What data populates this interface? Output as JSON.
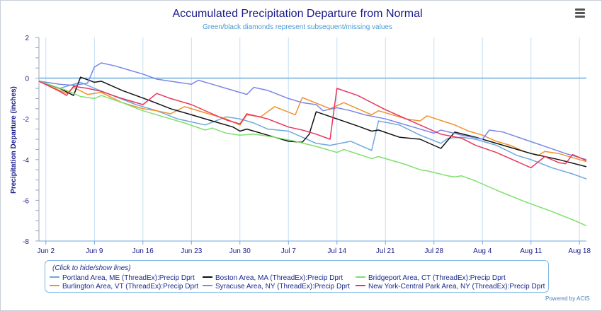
{
  "chart_data": {
    "type": "line",
    "title": "Accumulated Precipitation Departure from Normal",
    "subtitle": "Green/black diamonds represent subsequent/missing values",
    "ylabel": "Precipitation Departure (inches)",
    "xlabel": "",
    "ylim": [
      -8,
      2
    ],
    "xlim": [
      0,
      79
    ],
    "yticks": [
      2,
      0,
      -2,
      -4,
      -6,
      -8
    ],
    "xticks": [
      {
        "day": 1,
        "label": "Jun 2"
      },
      {
        "day": 8,
        "label": "Jun 9"
      },
      {
        "day": 15,
        "label": "Jun 16"
      },
      {
        "day": 22,
        "label": "Jun 23"
      },
      {
        "day": 29,
        "label": "Jun 30"
      },
      {
        "day": 36,
        "label": "Jul 7"
      },
      {
        "day": 43,
        "label": "Jul 14"
      },
      {
        "day": 50,
        "label": "Jul 21"
      },
      {
        "day": 57,
        "label": "Jul 28"
      },
      {
        "day": 64,
        "label": "Aug 4"
      },
      {
        "day": 71,
        "label": "Aug 11"
      },
      {
        "day": 78,
        "label": "Aug 18"
      }
    ],
    "series": [
      {
        "name": "Portland Area, ME (ThreadEx):Precip Dprt",
        "color": "#6fa8dc",
        "points": [
          [
            0,
            -0.15
          ],
          [
            3,
            -0.5
          ],
          [
            5,
            -0.3
          ],
          [
            6,
            -0.2
          ],
          [
            8,
            -0.5
          ],
          [
            11,
            -0.9
          ],
          [
            14,
            -1.3
          ],
          [
            17,
            -1.6
          ],
          [
            20,
            -2.0
          ],
          [
            24,
            -2.3
          ],
          [
            27,
            -1.9
          ],
          [
            29,
            -2.0
          ],
          [
            31,
            -2.2
          ],
          [
            33,
            -2.5
          ],
          [
            36,
            -2.6
          ],
          [
            38,
            -2.9
          ],
          [
            40,
            -3.2
          ],
          [
            42,
            -3.3
          ],
          [
            45,
            -3.1
          ],
          [
            48,
            -3.55
          ],
          [
            49,
            -2.1
          ],
          [
            52,
            -2.3
          ],
          [
            55,
            -2.8
          ],
          [
            58,
            -3.2
          ],
          [
            59,
            -2.95
          ],
          [
            61,
            -2.9
          ],
          [
            63,
            -3.0
          ],
          [
            66,
            -3.3
          ],
          [
            69,
            -3.8
          ],
          [
            71,
            -4.0
          ],
          [
            74,
            -4.4
          ],
          [
            77,
            -4.7
          ],
          [
            79,
            -4.95
          ]
        ]
      },
      {
        "name": "Burlington Area, VT (ThreadEx):Precip Dprt",
        "color": "#f0922b",
        "points": [
          [
            0,
            -0.15
          ],
          [
            3,
            -0.6
          ],
          [
            4,
            -0.75
          ],
          [
            5,
            -0.45
          ],
          [
            7,
            -0.8
          ],
          [
            9,
            -0.7
          ],
          [
            12,
            -1.2
          ],
          [
            15,
            -1.5
          ],
          [
            17,
            -1.6
          ],
          [
            19,
            -1.75
          ],
          [
            21,
            -1.4
          ],
          [
            24,
            -1.7
          ],
          [
            27,
            -2.0
          ],
          [
            29,
            -2.3
          ],
          [
            30,
            -1.8
          ],
          [
            32,
            -1.9
          ],
          [
            34,
            -1.4
          ],
          [
            37,
            -1.8
          ],
          [
            38,
            -0.95
          ],
          [
            42,
            -1.5
          ],
          [
            44,
            -1.2
          ],
          [
            48,
            -1.8
          ],
          [
            49,
            -1.6
          ],
          [
            53,
            -2.0
          ],
          [
            55,
            -2.1
          ],
          [
            56,
            -1.85
          ],
          [
            60,
            -2.3
          ],
          [
            62,
            -2.6
          ],
          [
            64,
            -2.8
          ],
          [
            66,
            -3.1
          ],
          [
            68,
            -3.3
          ],
          [
            70,
            -3.6
          ],
          [
            72,
            -3.8
          ],
          [
            73,
            -3.6
          ],
          [
            75,
            -3.7
          ],
          [
            79,
            -4.1
          ]
        ]
      },
      {
        "name": "Boston Area, MA (ThreadEx):Precip Dprt",
        "color": "#111111",
        "points": [
          [
            0,
            -0.15
          ],
          [
            3,
            -0.5
          ],
          [
            5,
            -0.85
          ],
          [
            6,
            0.05
          ],
          [
            8,
            -0.2
          ],
          [
            9,
            -0.15
          ],
          [
            12,
            -0.6
          ],
          [
            16,
            -1.1
          ],
          [
            19,
            -1.5
          ],
          [
            22,
            -1.8
          ],
          [
            25,
            -2.1
          ],
          [
            28,
            -2.4
          ],
          [
            29,
            -2.6
          ],
          [
            30,
            -2.5
          ],
          [
            33,
            -2.8
          ],
          [
            36,
            -3.1
          ],
          [
            38,
            -3.15
          ],
          [
            39,
            -2.75
          ],
          [
            40,
            -1.65
          ],
          [
            43,
            -2.0
          ],
          [
            46,
            -2.35
          ],
          [
            48,
            -2.6
          ],
          [
            49,
            -2.55
          ],
          [
            52,
            -2.9
          ],
          [
            55,
            -3.0
          ],
          [
            58,
            -3.45
          ],
          [
            60,
            -2.65
          ],
          [
            63,
            -2.9
          ],
          [
            67,
            -3.3
          ],
          [
            71,
            -3.7
          ],
          [
            75,
            -4.0
          ],
          [
            79,
            -4.35
          ]
        ]
      },
      {
        "name": "Syracuse Area, NY (ThreadEx):Precip Dprt",
        "color": "#7b86e6",
        "points": [
          [
            0,
            -0.15
          ],
          [
            3,
            -0.3
          ],
          [
            5,
            -0.35
          ],
          [
            7,
            -0.25
          ],
          [
            8,
            0.55
          ],
          [
            9,
            0.75
          ],
          [
            11,
            0.6
          ],
          [
            13,
            0.4
          ],
          [
            15,
            0.2
          ],
          [
            17,
            -0.05
          ],
          [
            20,
            -0.2
          ],
          [
            22,
            -0.3
          ],
          [
            23,
            -0.1
          ],
          [
            25,
            -0.3
          ],
          [
            27,
            -0.5
          ],
          [
            30,
            -0.8
          ],
          [
            31,
            -0.45
          ],
          [
            33,
            -0.6
          ],
          [
            36,
            -1.0
          ],
          [
            38,
            -1.2
          ],
          [
            40,
            -1.3
          ],
          [
            41,
            -1.6
          ],
          [
            43,
            -1.45
          ],
          [
            45,
            -1.6
          ],
          [
            47,
            -1.8
          ],
          [
            50,
            -2.0
          ],
          [
            52,
            -2.2
          ],
          [
            54,
            -2.4
          ],
          [
            57,
            -2.7
          ],
          [
            58,
            -2.55
          ],
          [
            61,
            -2.8
          ],
          [
            64,
            -3.0
          ],
          [
            65,
            -2.55
          ],
          [
            67,
            -2.65
          ],
          [
            70,
            -3.0
          ],
          [
            73,
            -3.35
          ],
          [
            76,
            -3.7
          ],
          [
            79,
            -4.0
          ]
        ]
      },
      {
        "name": "Bridgeport Area, CT (ThreadEx):Precip Dprt",
        "color": "#7fe06b",
        "points": [
          [
            0,
            -0.15
          ],
          [
            4,
            -0.6
          ],
          [
            6,
            -0.9
          ],
          [
            8,
            -1.0
          ],
          [
            9,
            -0.85
          ],
          [
            12,
            -1.2
          ],
          [
            15,
            -1.6
          ],
          [
            18,
            -1.9
          ],
          [
            21,
            -2.2
          ],
          [
            24,
            -2.55
          ],
          [
            25,
            -2.45
          ],
          [
            27,
            -2.7
          ],
          [
            29,
            -2.8
          ],
          [
            31,
            -2.75
          ],
          [
            34,
            -2.9
          ],
          [
            37,
            -3.1
          ],
          [
            40,
            -3.35
          ],
          [
            43,
            -3.65
          ],
          [
            44,
            -3.5
          ],
          [
            48,
            -3.95
          ],
          [
            49,
            -3.85
          ],
          [
            53,
            -4.25
          ],
          [
            55,
            -4.5
          ],
          [
            56,
            -4.55
          ],
          [
            59,
            -4.8
          ],
          [
            60,
            -4.85
          ],
          [
            61,
            -4.8
          ],
          [
            63,
            -5.05
          ],
          [
            66,
            -5.5
          ],
          [
            70,
            -6.05
          ],
          [
            74,
            -6.55
          ],
          [
            77,
            -6.95
          ],
          [
            79,
            -7.25
          ]
        ]
      },
      {
        "name": "New York-Central Park Area, NY (ThreadEx):Precip Dprt",
        "color": "#e8355a",
        "points": [
          [
            0,
            -0.15
          ],
          [
            3,
            -0.65
          ],
          [
            4,
            -0.85
          ],
          [
            5,
            -0.4
          ],
          [
            7,
            -0.5
          ],
          [
            9,
            -0.65
          ],
          [
            12,
            -1.0
          ],
          [
            15,
            -1.3
          ],
          [
            17,
            -0.75
          ],
          [
            19,
            -1.0
          ],
          [
            22,
            -1.3
          ],
          [
            25,
            -1.75
          ],
          [
            27,
            -2.05
          ],
          [
            29,
            -2.25
          ],
          [
            30,
            -1.75
          ],
          [
            33,
            -2.0
          ],
          [
            36,
            -2.4
          ],
          [
            38,
            -2.55
          ],
          [
            40,
            -2.75
          ],
          [
            42,
            -3.0
          ],
          [
            43,
            -0.5
          ],
          [
            46,
            -0.85
          ],
          [
            50,
            -1.55
          ],
          [
            53,
            -2.0
          ],
          [
            56,
            -2.45
          ],
          [
            58,
            -2.75
          ],
          [
            61,
            -2.95
          ],
          [
            63,
            -3.3
          ],
          [
            66,
            -3.65
          ],
          [
            69,
            -4.1
          ],
          [
            70,
            -4.25
          ],
          [
            71,
            -4.4
          ],
          [
            73,
            -3.85
          ],
          [
            75,
            -4.15
          ],
          [
            76,
            -4.2
          ],
          [
            77,
            -3.75
          ],
          [
            79,
            -4.05
          ]
        ]
      }
    ]
  },
  "legend": {
    "hint": "(Click to hide/show lines)"
  },
  "credit": "Powered by ACIS"
}
